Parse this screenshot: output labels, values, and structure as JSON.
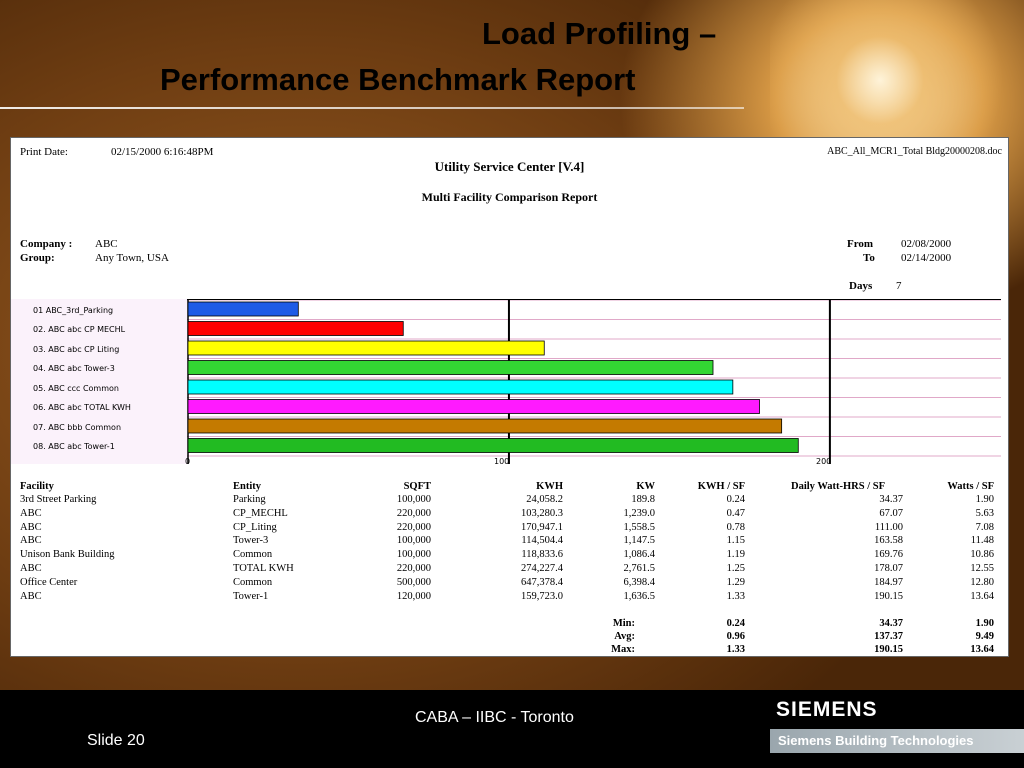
{
  "slide": {
    "title_line1": "Load Profiling –",
    "title_line2": "Performance Benchmark Report"
  },
  "report": {
    "print_date_label": "Print Date:",
    "print_date_value": "02/15/2000   6:16:48PM",
    "filename": "ABC_All_MCR1_Total Bldg20000208.doc",
    "header_title": "Utility Service Center   [V.4]",
    "subtitle": "Multi Facility Comparison Report",
    "company_label": "Company :",
    "company_value": "ABC",
    "group_label": "Group:",
    "group_value": "Any Town, USA",
    "from_label": "From",
    "from_value": "02/08/2000",
    "to_label": "To",
    "to_value": "02/14/2000",
    "days_label": "Days",
    "days_value": "7"
  },
  "chart_data": {
    "type": "bar",
    "orientation": "horizontal",
    "categories": [
      "01  ABC_3rd_Parking",
      "02. ABC  abc  CP  MECHL",
      "03. ABC  abc  CP  Liting",
      "04. ABC  abc  Tower-3",
      "05. ABC  ccc  Common",
      "06. ABC  abc  TOTAL KWH",
      "07. ABC  bbb  Common",
      "08. ABC  abc  Tower-1"
    ],
    "values": [
      34.37,
      67.07,
      111.0,
      163.58,
      169.76,
      178.07,
      184.97,
      190.15
    ],
    "colors": [
      "#1e5be6",
      "#ff0000",
      "#ffff00",
      "#33d633",
      "#00ffff",
      "#ff1aff",
      "#c47a00",
      "#22bb22"
    ],
    "xticks": [
      "0",
      "100",
      "200"
    ],
    "xlim": [
      0,
      253
    ],
    "grid": true,
    "xlabel": "",
    "ylabel": ""
  },
  "table": {
    "headers": [
      "Facility",
      "Entity",
      "SQFT",
      "KWH",
      "KW",
      "KWH / SF",
      "Daily Watt-HRS / SF",
      "Watts / SF"
    ],
    "rows": [
      [
        "3rd Street Parking",
        "Parking",
        "100,000",
        "24,058.2",
        "189.8",
        "0.24",
        "34.37",
        "1.90"
      ],
      [
        "ABC",
        "CP_MECHL",
        "220,000",
        "103,280.3",
        "1,239.0",
        "0.47",
        "67.07",
        "5.63"
      ],
      [
        "ABC",
        "CP_Liting",
        "220,000",
        "170,947.1",
        "1,558.5",
        "0.78",
        "111.00",
        "7.08"
      ],
      [
        "ABC",
        "Tower-3",
        "100,000",
        "114,504.4",
        "1,147.5",
        "1.15",
        "163.58",
        "11.48"
      ],
      [
        "Unison Bank Building",
        "Common",
        "100,000",
        "118,833.6",
        "1,086.4",
        "1.19",
        "169.76",
        "10.86"
      ],
      [
        "ABC",
        "TOTAL KWH",
        "220,000",
        "274,227.4",
        "2,761.5",
        "1.25",
        "178.07",
        "12.55"
      ],
      [
        "Office Center",
        "Common",
        "500,000",
        "647,378.4",
        "6,398.4",
        "1.29",
        "184.97",
        "12.80"
      ],
      [
        "ABC",
        "Tower-1",
        "120,000",
        "159,723.0",
        "1,636.5",
        "1.33",
        "190.15",
        "13.64"
      ]
    ],
    "summary": [
      [
        "Min:",
        "0.24",
        "34.37",
        "1.90"
      ],
      [
        "Avg:",
        "0.96",
        "137.37",
        "9.49"
      ],
      [
        "Max:",
        "1.33",
        "190.15",
        "13.64"
      ]
    ]
  },
  "footer": {
    "center_text": "CABA – IIBC - Toronto",
    "slide_label": "Slide 20",
    "logo_text": "SIEMENS",
    "division_text": "Siemens Building Technologies"
  }
}
